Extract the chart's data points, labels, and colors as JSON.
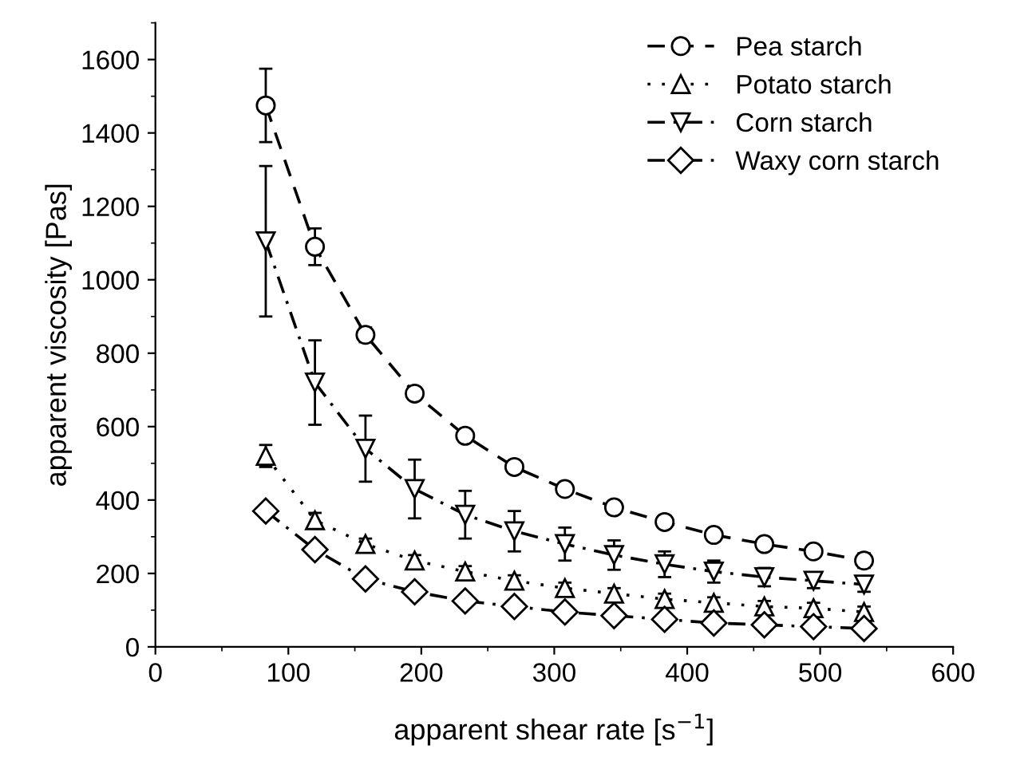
{
  "chart_data": {
    "type": "line",
    "xlabel": "apparent shear rate [s$^{−1}$]",
    "ylabel": "apparent viscosity [Pas]",
    "x": [
      83,
      120,
      158,
      195,
      233,
      270,
      308,
      345,
      383,
      420,
      458,
      495,
      533
    ],
    "series": [
      {
        "name": "Pea starch",
        "color": "#000000",
        "marker": "circle",
        "line_style": "dashed",
        "values": [
          1475,
          1090,
          850,
          690,
          575,
          490,
          430,
          380,
          340,
          305,
          280,
          260,
          235
        ],
        "errors": [
          100,
          50,
          20,
          15,
          15,
          15,
          15,
          15,
          15,
          15,
          15,
          15,
          20
        ]
      },
      {
        "name": "Potato starch",
        "color": "#000000",
        "marker": "triangle",
        "line_style": "dotted",
        "values": [
          520,
          345,
          280,
          235,
          205,
          180,
          160,
          145,
          130,
          120,
          110,
          105,
          95
        ],
        "errors": [
          30,
          20,
          15,
          15,
          15,
          15,
          15,
          15,
          15,
          15,
          15,
          15,
          15
        ]
      },
      {
        "name": "Corn starch",
        "color": "#000000",
        "marker": "triangle_down",
        "line_style": "dashdot",
        "values": [
          1105,
          720,
          540,
          430,
          360,
          315,
          280,
          250,
          225,
          205,
          190,
          180,
          170
        ],
        "errors": [
          205,
          115,
          90,
          80,
          65,
          55,
          45,
          40,
          35,
          30,
          25,
          20,
          20
        ]
      },
      {
        "name": "Waxy corn starch",
        "color": "#000000",
        "marker": "diamond",
        "line_style": "dashdot",
        "values": [
          370,
          265,
          185,
          150,
          125,
          110,
          95,
          85,
          75,
          65,
          60,
          55,
          50
        ],
        "errors": [
          15,
          15,
          15,
          15,
          15,
          15,
          15,
          15,
          15,
          15,
          15,
          15,
          15
        ]
      }
    ],
    "xlim": [
      0,
      600
    ],
    "xticks": [
      0,
      100,
      200,
      300,
      400,
      500,
      600
    ],
    "ylim": [
      0,
      1700
    ],
    "yticks": [
      0,
      200,
      400,
      600,
      800,
      1000,
      1200,
      1400,
      1600
    ],
    "grid": false,
    "legend": "top right"
  }
}
